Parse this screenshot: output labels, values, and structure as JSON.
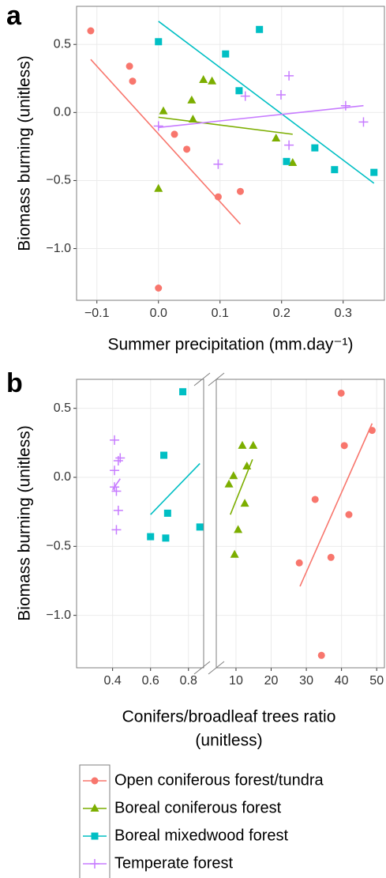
{
  "chart_data": [
    {
      "type": "scatter",
      "panel": "a",
      "x_label": "Summer precipitation (mm.day⁻¹)",
      "y_label": "Biomass burning (unitless)",
      "xlim": [
        -0.133,
        0.367
      ],
      "xticks": [
        {
          "value": -0.1,
          "label": "−0.1"
        },
        {
          "value": 0,
          "label": "0.0"
        },
        0.1,
        0.2,
        0.3
      ],
      "ylim": [
        -1.38,
        0.78
      ],
      "yticks": [
        0.5,
        {
          "value": 0,
          "label": "0.0"
        },
        {
          "value": -0.5,
          "label": "−0.5"
        },
        {
          "value": -1,
          "label": "−1.0"
        }
      ],
      "grid": true,
      "series": [
        {
          "name": "Open coniferous forest/tundra",
          "color": "#F8766D",
          "marker": "circle",
          "x": [
            -0.11,
            -0.047,
            -0.042,
            0.026,
            0.046,
            0.097,
            0.133,
            0.0
          ],
          "values": [
            0.6,
            0.34,
            0.23,
            -0.16,
            -0.27,
            -0.62,
            -0.58,
            -1.29
          ],
          "fit": {
            "x": [
              -0.11,
              0.133
            ],
            "values": [
              0.39,
              -0.82
            ]
          }
        },
        {
          "name": "Boreal coniferous forest",
          "color": "#7CAE00",
          "marker": "triangle",
          "x": [
            0.0,
            0.008,
            0.054,
            0.056,
            0.073,
            0.087,
            0.191,
            0.218
          ],
          "values": [
            -0.56,
            0.01,
            0.09,
            -0.05,
            0.24,
            0.23,
            -0.19,
            -0.37
          ],
          "fit": {
            "x": [
              0.0,
              0.218
            ],
            "values": [
              -0.035,
              -0.16
            ]
          }
        },
        {
          "name": "Boreal mixedwood forest",
          "color": "#00BFC4",
          "marker": "square",
          "x": [
            0.0,
            0.109,
            0.131,
            0.164,
            0.208,
            0.254,
            0.286,
            0.35
          ],
          "values": [
            0.52,
            0.43,
            0.16,
            0.61,
            -0.36,
            -0.26,
            -0.42,
            -0.44
          ],
          "fit": {
            "x": [
              0.0,
              0.35
            ],
            "values": [
              0.67,
              -0.52
            ]
          }
        },
        {
          "name": "Temperate forest",
          "color": "#C77CFF",
          "marker": "plus",
          "x": [
            0.0,
            0.097,
            0.141,
            0.199,
            0.212,
            0.212,
            0.304,
            0.333
          ],
          "values": [
            -0.1,
            -0.38,
            0.12,
            0.13,
            0.27,
            -0.24,
            0.05,
            -0.07
          ],
          "fit": {
            "x": [
              0.0,
              0.333
            ],
            "values": [
              -0.11,
              0.05
            ]
          }
        }
      ]
    },
    {
      "type": "scatter",
      "panel": "b",
      "x_label": [
        "Conifers/broadleaf trees ratio",
        "(unitless)"
      ],
      "y_label": "Biomass burning (unitless)",
      "x_segments": [
        {
          "xlim": [
            0.21,
            0.88
          ],
          "xticks": [
            0.4,
            0.6,
            0.8
          ]
        },
        {
          "xlim": [
            4.4,
            52.2
          ],
          "xticks": [
            10,
            20,
            30,
            40,
            50
          ]
        }
      ],
      "ylim": [
        -1.38,
        0.71
      ],
      "yticks": [
        0.5,
        {
          "value": 0,
          "label": "0.0"
        },
        {
          "value": -0.5,
          "label": "−0.5"
        },
        {
          "value": -1,
          "label": "−1.0"
        }
      ],
      "grid": true,
      "series": [
        {
          "name": "Open coniferous forest/tundra",
          "color": "#F8766D",
          "marker": "circle",
          "segment": 1,
          "x": [
            39.9,
            40.8,
            48.7,
            32.5,
            42.1,
            28.0,
            37.0,
            34.3
          ],
          "values": [
            0.61,
            0.23,
            0.34,
            -0.16,
            -0.27,
            -0.62,
            -0.58,
            -1.29
          ],
          "fit": {
            "x": [
              28.2,
              48.7
            ],
            "values": [
              -0.79,
              0.39
            ]
          }
        },
        {
          "name": "Boreal coniferous forest",
          "color": "#7CAE00",
          "marker": "triangle",
          "segment": 1,
          "x": [
            9.6,
            8.0,
            9.3,
            10.6,
            11.8,
            13.1,
            12.5,
            14.9
          ],
          "values": [
            -0.56,
            -0.05,
            0.01,
            -0.38,
            0.23,
            0.08,
            -0.19,
            0.23
          ],
          "fit": {
            "x": [
              8.4,
              14.7
            ],
            "values": [
              -0.27,
              0.13
            ]
          }
        },
        {
          "name": "Boreal mixedwood forest",
          "color": "#00BFC4",
          "marker": "square",
          "segment": 0,
          "x": [
            0.77,
            0.67,
            0.69,
            0.86,
            0.6,
            0.68
          ],
          "values": [
            0.62,
            0.16,
            -0.26,
            -0.36,
            -0.43,
            -0.44
          ],
          "fit": {
            "x": [
              0.6,
              0.86
            ],
            "values": [
              -0.27,
              0.1
            ]
          }
        },
        {
          "name": "Temperate forest",
          "color": "#C77CFF",
          "marker": "plus",
          "segment": 0,
          "x": [
            0.41,
            0.44,
            0.43,
            0.41,
            0.41,
            0.42,
            0.43,
            0.42
          ],
          "values": [
            0.27,
            0.14,
            0.12,
            0.05,
            -0.07,
            -0.1,
            -0.24,
            -0.38
          ],
          "fit": {
            "x": [
              0.4,
              0.44
            ],
            "values": [
              -0.09,
              -0.01
            ]
          }
        }
      ]
    }
  ]
}
